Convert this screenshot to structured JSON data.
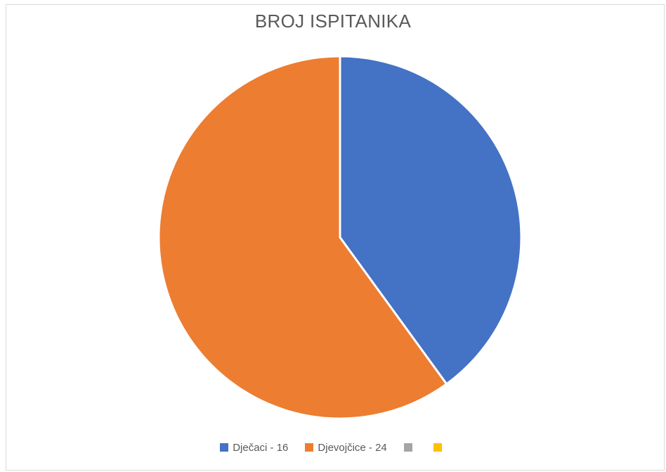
{
  "chart_data": {
    "type": "pie",
    "title": "BROJ ISPITANIKA",
    "categories": [
      "Dječaci - 16",
      "Djevojčice - 24",
      "",
      ""
    ],
    "values": [
      16,
      24,
      0,
      0
    ],
    "colors": [
      "#4472C4",
      "#ED7D31",
      "#A5A5A5",
      "#FFC000"
    ],
    "legend_position": "bottom"
  }
}
